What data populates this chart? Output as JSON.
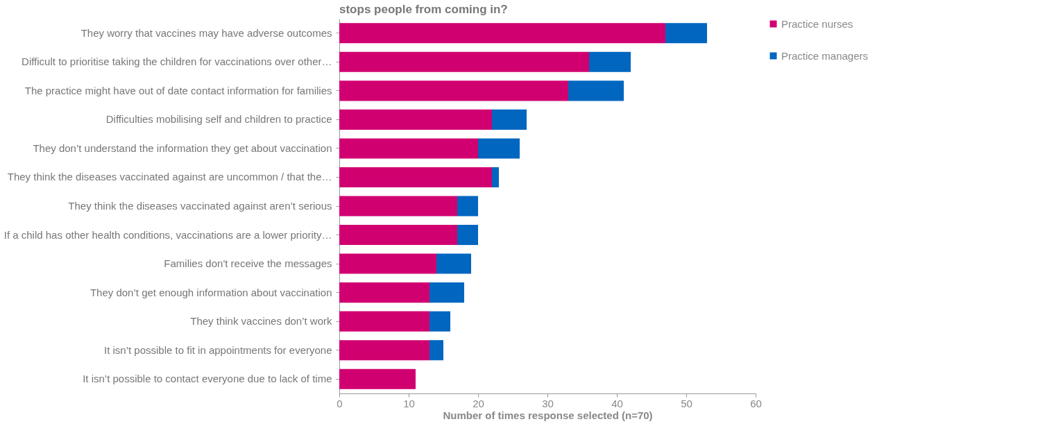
{
  "chart_data": {
    "type": "bar",
    "orientation": "horizontal",
    "stacked": true,
    "title": "stops people from coming in?",
    "xlabel": "Number of times response selected (n=70)",
    "categories": [
      "They worry that vaccines may have adverse outcomes",
      "Difficult to prioritise taking the children for vaccinations over other…",
      "The practice might have out of date contact information for families",
      "Difficulties mobilising self and children to practice",
      "They don’t understand the information they get about vaccination",
      "They think the diseases vaccinated against are uncommon / that the…",
      "They think the diseases vaccinated against aren’t serious",
      "If a child has other health conditions, vaccinations are a lower priority…",
      "Families don't receive the messages",
      "They don’t get enough information about vaccination",
      "They think vaccines don’t work",
      "It isn’t possible to fit in appointments for everyone",
      "It isn’t possible to contact everyone due to lack of time"
    ],
    "series": [
      {
        "name": "Practice nurses",
        "color": "#d10070",
        "values": [
          47,
          36,
          33,
          22,
          20,
          22,
          17,
          17,
          14,
          13,
          13,
          13,
          11
        ]
      },
      {
        "name": "Practice managers",
        "color": "#0066c0",
        "values": [
          6,
          6,
          8,
          5,
          6,
          1,
          3,
          3,
          5,
          5,
          3,
          2,
          0
        ]
      }
    ],
    "xlim": [
      0,
      60
    ],
    "xticks": [
      0,
      10,
      20,
      30,
      40,
      50,
      60
    ],
    "grid": false,
    "legend": "right"
  }
}
